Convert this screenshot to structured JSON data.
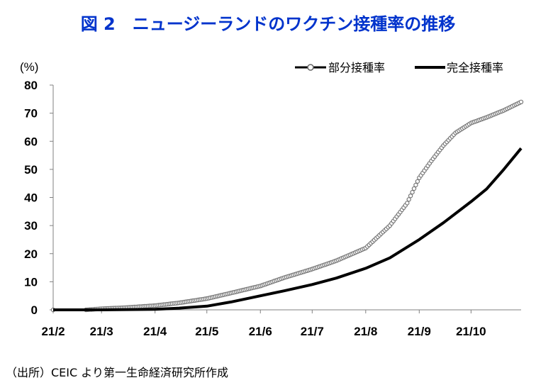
{
  "title": "図 2　ニュージーランドのワクチン接種率の推移",
  "source": "（出所）CEIC より第一生命経済研究所作成",
  "chart_data": {
    "type": "line",
    "ylabel": "(%)",
    "ylim": [
      0,
      80
    ],
    "yticks": [
      0,
      10,
      20,
      30,
      40,
      50,
      60,
      70,
      80
    ],
    "x_labels": [
      "21/2",
      "21/3",
      "21/4",
      "21/5",
      "21/6",
      "21/7",
      "21/8",
      "21/9",
      "21/10"
    ],
    "x_dates": [
      "2021-02-01",
      "2021-03-01",
      "2021-04-01",
      "2021-05-01",
      "2021-06-01",
      "2021-07-01",
      "2021-08-01",
      "2021-09-01",
      "2021-10-01"
    ],
    "x_range": [
      "2021-02-01",
      "2021-10-30"
    ],
    "grid": false,
    "legend_position": "top-right",
    "series": [
      {
        "name": "部分接種率",
        "color": "#777777",
        "style": "markers",
        "x": [
          "2021-02-01",
          "2021-02-20",
          "2021-03-01",
          "2021-03-15",
          "2021-04-01",
          "2021-04-15",
          "2021-05-01",
          "2021-05-15",
          "2021-06-01",
          "2021-06-15",
          "2021-07-01",
          "2021-07-15",
          "2021-08-01",
          "2021-08-15",
          "2021-08-25",
          "2021-09-01",
          "2021-09-08",
          "2021-09-15",
          "2021-09-22",
          "2021-10-01",
          "2021-10-10",
          "2021-10-20",
          "2021-10-30"
        ],
        "y": [
          0,
          0,
          0.4,
          0.8,
          1.5,
          2.5,
          4,
          6,
          8.5,
          11.5,
          14.5,
          17.5,
          22,
          30,
          38,
          47,
          53,
          58.5,
          63,
          66.5,
          68.5,
          71,
          74
        ]
      },
      {
        "name": "完全接種率",
        "color": "#000000",
        "style": "line",
        "x": [
          "2021-02-01",
          "2021-03-01",
          "2021-04-01",
          "2021-04-15",
          "2021-05-01",
          "2021-05-15",
          "2021-06-01",
          "2021-06-15",
          "2021-07-01",
          "2021-07-15",
          "2021-08-01",
          "2021-08-15",
          "2021-09-01",
          "2021-09-15",
          "2021-10-01",
          "2021-10-10",
          "2021-10-20",
          "2021-10-30"
        ],
        "y": [
          0,
          0,
          0.2,
          0.6,
          1.3,
          2.8,
          5,
          6.8,
          9,
          11.3,
          14.8,
          18.5,
          25,
          31,
          38.5,
          43,
          50,
          57.5
        ]
      }
    ]
  }
}
